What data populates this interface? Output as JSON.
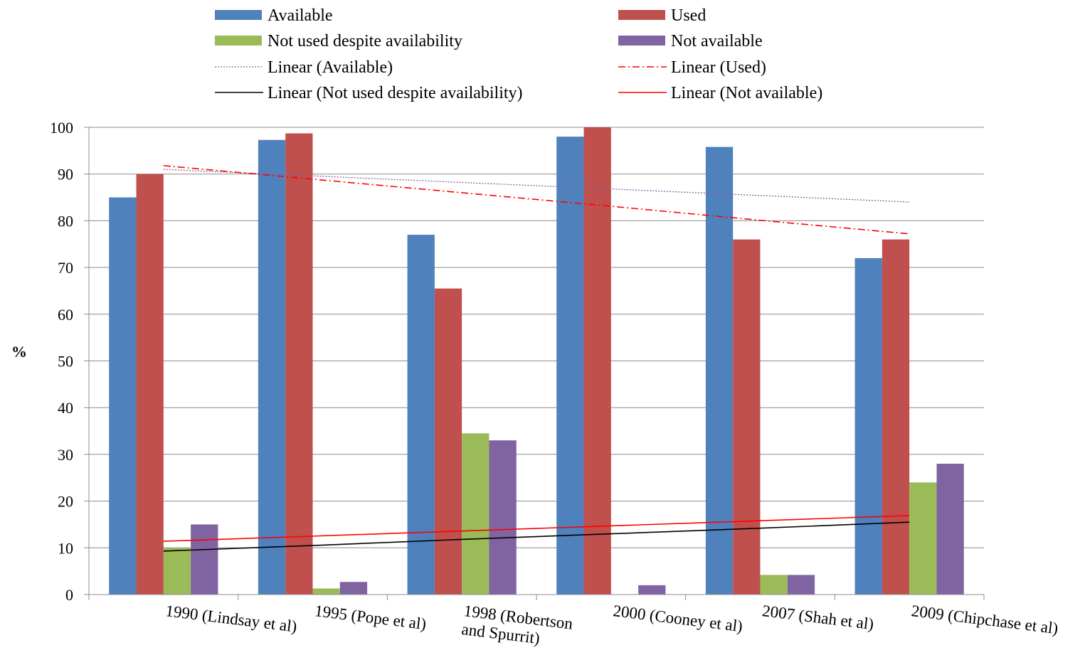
{
  "chart_data": {
    "type": "bar",
    "title": "",
    "xlabel": "",
    "ylabel": "%",
    "ylim": [
      0,
      100
    ],
    "yticks": [
      0,
      10,
      20,
      30,
      40,
      50,
      60,
      70,
      80,
      90,
      100
    ],
    "grid": true,
    "legend_position": "top",
    "categories": [
      "1990 (Lindsay et al)",
      "1995 (Pope et al)",
      "1998 (Robertson and Spurrit)",
      "2000 (Cooney et al)",
      "2007 (Shah et al)",
      "2009 (Chipchase et al)"
    ],
    "series": [
      {
        "name": "Available",
        "color": "#4F81BD",
        "values": [
          85,
          97.3,
          77,
          98,
          95.8,
          72
        ]
      },
      {
        "name": "Used",
        "color": "#C0504D",
        "values": [
          90,
          98.7,
          65.5,
          100,
          76,
          76
        ]
      },
      {
        "name": "Not used despite availability",
        "color": "#9BBB59",
        "values": [
          10,
          1.3,
          34.5,
          0,
          4.2,
          24
        ]
      },
      {
        "name": "Not available",
        "color": "#8064A2",
        "values": [
          15,
          2.7,
          33,
          2,
          4.2,
          28
        ]
      }
    ],
    "trendlines": [
      {
        "name": "Linear (Available)",
        "color": "#8064A2",
        "style": "dotted",
        "values": [
          91,
          89.6,
          88.2,
          86.8,
          85.4,
          84
        ]
      },
      {
        "name": "Linear (Used)",
        "color": "#FF0000",
        "style": "dashdot",
        "values": [
          91.8,
          88.9,
          86,
          83.1,
          80.1,
          77.2
        ]
      },
      {
        "name": "Linear (Not used despite availability)",
        "color": "#000000",
        "style": "solid",
        "values": [
          9.3,
          10.5,
          11.8,
          13,
          14.2,
          15.5
        ]
      },
      {
        "name": "Linear (Not available)",
        "color": "#FF0000",
        "style": "solid",
        "values": [
          11.4,
          12.5,
          13.6,
          14.7,
          15.8,
          16.9
        ]
      }
    ]
  }
}
